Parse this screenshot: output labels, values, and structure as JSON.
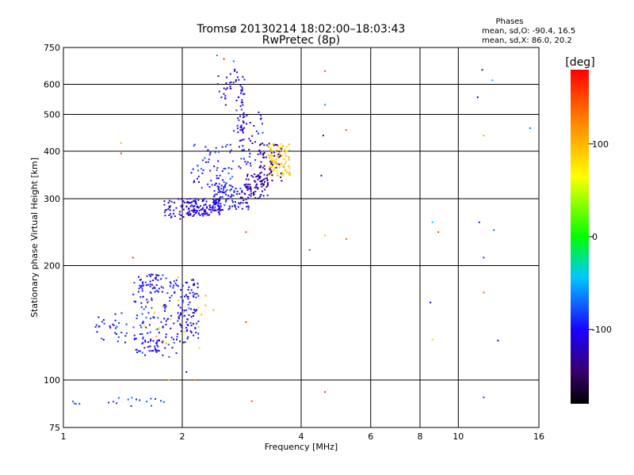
{
  "chart_data": {
    "type": "scatter",
    "title": "Tromsø 20130214 18:02:00–18:03:43",
    "subtitle": "RwPretec (8p)",
    "xlabel": "Frequency [MHz]",
    "ylabel": "Stationary phase Virtual Height [km]",
    "x_scale": "log",
    "y_scale": "log",
    "xlim": [
      1,
      16
    ],
    "ylim": [
      75,
      750
    ],
    "x_ticks": [
      1,
      2,
      4,
      6,
      8,
      10,
      16
    ],
    "x_tick_labels": [
      "1",
      "2",
      "4",
      "6",
      "8",
      "10",
      "16"
    ],
    "y_ticks": [
      75,
      100,
      200,
      300,
      400,
      500,
      600,
      750
    ],
    "y_tick_labels": [
      "75",
      "100",
      "200",
      "300",
      "400",
      "500",
      "600",
      "750"
    ],
    "grid": true,
    "info": {
      "heading": "Phases",
      "line1": "mean, sd,O: -90.4, 16.5",
      "line2": "mean, sd,X:  86.0, 20.2"
    },
    "colorbar": {
      "label": "[deg]",
      "range": [
        -180,
        180
      ],
      "ticks": [
        100,
        0,
        -100
      ],
      "tick_labels": [
        "100",
        "0",
        "-100"
      ]
    },
    "clusters": [
      {
        "f": [
          2.05,
          2.5
        ],
        "h": [
          270,
          300
        ],
        "ph": [
          -130,
          -90
        ],
        "n": 120
      },
      {
        "f": [
          2.4,
          2.95
        ],
        "h": [
          280,
          330
        ],
        "ph": [
          -125,
          -80
        ],
        "n": 110
      },
      {
        "f": [
          2.9,
          3.3
        ],
        "h": [
          300,
          350
        ],
        "ph": [
          -150,
          -110
        ],
        "n": 70
      },
      {
        "f": [
          3.3,
          3.75
        ],
        "h": [
          345,
          420
        ],
        "ph": [
          70,
          110
        ],
        "n": 110
      },
      {
        "f": [
          3.1,
          3.6
        ],
        "h": [
          330,
          420
        ],
        "ph": [
          -150,
          -120
        ],
        "n": 60
      },
      {
        "f": [
          2.1,
          2.7
        ],
        "h": [
          320,
          420
        ],
        "ph": [
          -110,
          -70
        ],
        "n": 60
      },
      {
        "f": [
          2.7,
          3.2
        ],
        "h": [
          360,
          520
        ],
        "ph": [
          -120,
          -80
        ],
        "n": 50
      },
      {
        "f": [
          2.45,
          2.85
        ],
        "h": [
          520,
          660
        ],
        "ph": [
          -125,
          -95
        ],
        "n": 35
      },
      {
        "f": [
          2.8,
          2.88
        ],
        "h": [
          420,
          630
        ],
        "ph": [
          -115,
          -95
        ],
        "n": 30
      },
      {
        "f": [
          1.8,
          2.1
        ],
        "h": [
          260,
          300
        ],
        "ph": [
          -130,
          -90
        ],
        "n": 45
      },
      {
        "f": [
          1.55,
          1.8
        ],
        "h": [
          170,
          190
        ],
        "ph": [
          -120,
          -90
        ],
        "n": 30
      },
      {
        "f": [
          1.5,
          1.95
        ],
        "h": [
          115,
          190
        ],
        "ph": [
          -115,
          -75
        ],
        "n": 130
      },
      {
        "f": [
          1.95,
          2.2
        ],
        "h": [
          125,
          185
        ],
        "ph": [
          -125,
          -80
        ],
        "n": 90
      },
      {
        "f": [
          1.6,
          1.75
        ],
        "h": [
          118,
          128
        ],
        "ph": [
          -110,
          -95
        ],
        "n": 25
      },
      {
        "f": [
          1.2,
          1.45
        ],
        "h": [
          125,
          150
        ],
        "ph": [
          -110,
          -80
        ],
        "n": 30
      },
      {
        "f": [
          1.55,
          2.4
        ],
        "h": [
          115,
          190
        ],
        "ph": [
          30,
          120
        ],
        "n": 25
      },
      {
        "f": [
          1.05,
          1.1
        ],
        "h": [
          86,
          90
        ],
        "ph": [
          -90,
          -70
        ],
        "n": 4
      },
      {
        "f": [
          1.3,
          1.8
        ],
        "h": [
          85,
          90
        ],
        "ph": [
          -100,
          -70
        ],
        "n": 15
      }
    ],
    "outliers": [
      {
        "f": 4.6,
        "h": 650,
        "ph": 150
      },
      {
        "f": 4.6,
        "h": 530,
        "ph": -60
      },
      {
        "f": 4.55,
        "h": 440,
        "ph": -120
      },
      {
        "f": 5.2,
        "h": 455,
        "ph": 150
      },
      {
        "f": 4.5,
        "h": 345,
        "ph": -120
      },
      {
        "f": 4.6,
        "h": 240,
        "ph": 100
      },
      {
        "f": 5.2,
        "h": 235,
        "ph": 140
      },
      {
        "f": 4.2,
        "h": 220,
        "ph": -70
      },
      {
        "f": 2.7,
        "h": 690,
        "ph": -70
      },
      {
        "f": 2.45,
        "h": 715,
        "ph": -60
      },
      {
        "f": 2.9,
        "h": 245,
        "ph": 150
      },
      {
        "f": 3.0,
        "h": 88,
        "ph": 150
      },
      {
        "f": 4.6,
        "h": 93,
        "ph": 160
      },
      {
        "f": 2.9,
        "h": 142,
        "ph": 150
      },
      {
        "f": 2.55,
        "h": 700,
        "ph": 160
      },
      {
        "f": 1.4,
        "h": 395,
        "ph": 150
      },
      {
        "f": 1.4,
        "h": 420,
        "ph": 30
      },
      {
        "f": 1.5,
        "h": 210,
        "ph": 150
      },
      {
        "f": 8.6,
        "h": 260,
        "ph": -40
      },
      {
        "f": 8.9,
        "h": 245,
        "ph": 150
      },
      {
        "f": 8.5,
        "h": 160,
        "ph": -120
      },
      {
        "f": 8.6,
        "h": 128,
        "ph": 40
      },
      {
        "f": 11.5,
        "h": 655,
        "ph": -150
      },
      {
        "f": 11.2,
        "h": 555,
        "ph": -130
      },
      {
        "f": 12.2,
        "h": 615,
        "ph": -50
      },
      {
        "f": 11.6,
        "h": 440,
        "ph": 110
      },
      {
        "f": 11.3,
        "h": 260,
        "ph": -110
      },
      {
        "f": 12.3,
        "h": 248,
        "ph": -70
      },
      {
        "f": 11.6,
        "h": 210,
        "ph": -90
      },
      {
        "f": 11.6,
        "h": 170,
        "ph": 140
      },
      {
        "f": 12.6,
        "h": 127,
        "ph": -120
      },
      {
        "f": 11.6,
        "h": 90,
        "ph": -80
      },
      {
        "f": 15.2,
        "h": 460,
        "ph": -70
      },
      {
        "f": 2.05,
        "h": 105,
        "ph": -120
      },
      {
        "f": 2.15,
        "h": 100,
        "ph": 130
      },
      {
        "f": 1.85,
        "h": 100,
        "ph": 100
      }
    ]
  }
}
